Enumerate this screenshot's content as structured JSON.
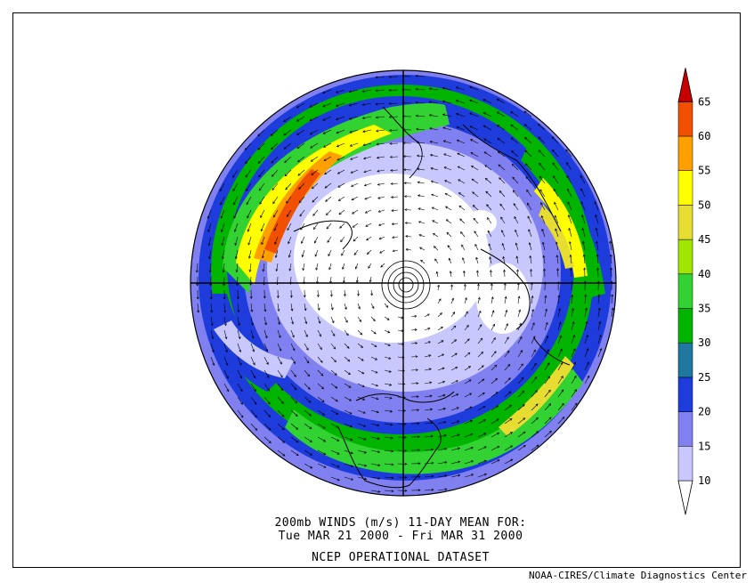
{
  "caption": {
    "line1": "200mb WINDS (m/s)   11-DAY MEAN FOR:",
    "line2": "Tue MAR 21 2000 - Fri MAR 31 2000",
    "line3": "NCEP OPERATIONAL DATASET"
  },
  "credit": "NOAA-CIRES/Climate Diagnostics Center",
  "colorbar": {
    "levels": [
      {
        "value": "10",
        "color": "#ffffff"
      },
      {
        "value": "15",
        "color": "#c8c8ff"
      },
      {
        "value": "20",
        "color": "#8080f0"
      },
      {
        "value": "25",
        "color": "#1e3cdc"
      },
      {
        "value": "30",
        "color": "#1e78a0"
      },
      {
        "value": "35",
        "color": "#00b400"
      },
      {
        "value": "40",
        "color": "#32d232"
      },
      {
        "value": "45",
        "color": "#a0e600"
      },
      {
        "value": "50",
        "color": "#e6dc32"
      },
      {
        "value": "55",
        "color": "#ffff00"
      },
      {
        "value": "60",
        "color": "#ffa000"
      },
      {
        "value": "65",
        "color": "#f05000"
      }
    ],
    "top_color": "#c80000"
  },
  "map": {
    "projection": "polar-stereographic-north",
    "field": "200mb wind speed",
    "units": "m/s"
  }
}
